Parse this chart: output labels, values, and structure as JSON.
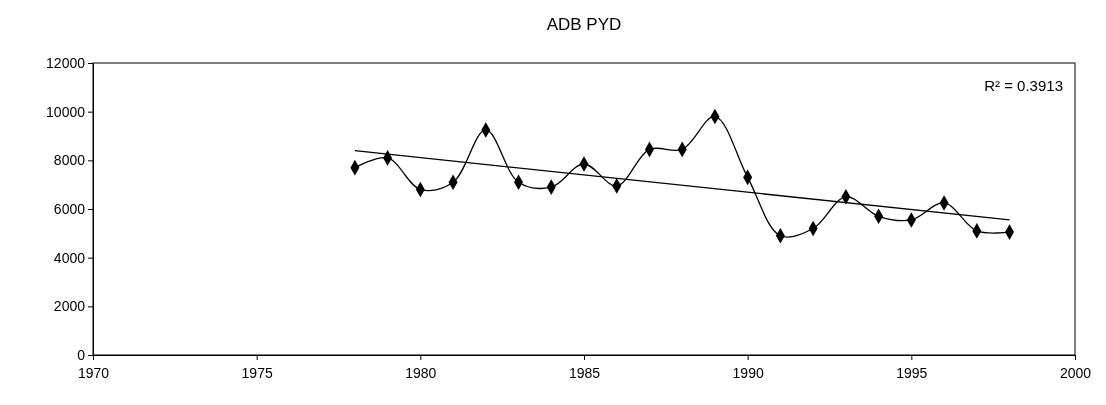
{
  "chart_data": {
    "type": "line",
    "title": "ADB PYD",
    "xlim": [
      1970,
      2000
    ],
    "xticks": [
      1970,
      1975,
      1980,
      1985,
      1990,
      1995,
      2000
    ],
    "ylim": [
      0,
      12000
    ],
    "yticks": [
      0,
      2000,
      4000,
      6000,
      8000,
      10000,
      12000
    ],
    "grid": false,
    "marker": "diamond",
    "annotations": [
      "R² = 0.3913"
    ],
    "series": [
      {
        "type": "line",
        "color": "#000000",
        "x": [
          1978,
          1979,
          1980,
          1981,
          1982,
          1983,
          1984,
          1985,
          1986,
          1987,
          1988,
          1989,
          1990,
          1991,
          1992,
          1993,
          1994,
          1995,
          1996,
          1997,
          1998
        ],
        "values": [
          7700,
          8100,
          6800,
          7100,
          9250,
          7100,
          6900,
          7850,
          6950,
          8450,
          8450,
          9800,
          7300,
          4900,
          5200,
          6500,
          5700,
          5550,
          6250,
          5100,
          5050
        ]
      },
      {
        "type": "line",
        "color": "#000000",
        "marker": "none",
        "x": [
          1978,
          1998
        ],
        "values": [
          8400,
          5550
        ]
      }
    ]
  }
}
